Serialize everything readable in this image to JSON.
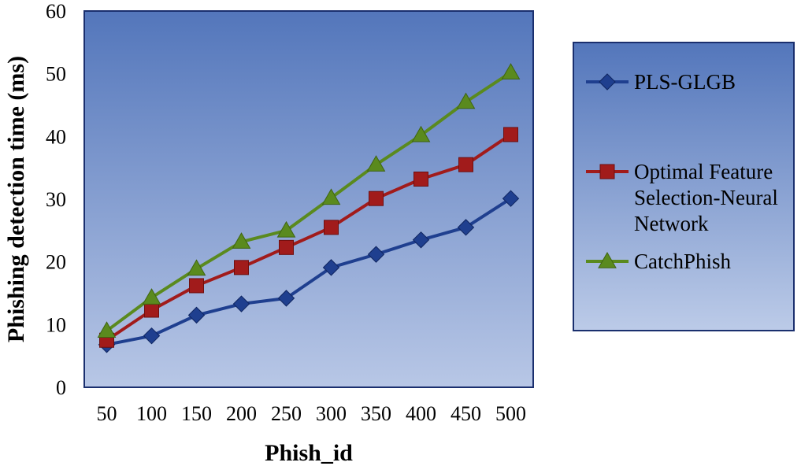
{
  "chart_data": {
    "type": "line",
    "title": "",
    "xlabel": "Phish_id",
    "ylabel": "Phishing detection time (ms)",
    "categories": [
      "50",
      "100",
      "150",
      "200",
      "250",
      "300",
      "350",
      "400",
      "450",
      "500"
    ],
    "ylim": [
      0,
      60
    ],
    "yticks": [
      "0",
      "10",
      "20",
      "30",
      "40",
      "50",
      "60"
    ],
    "grid": false,
    "legend_position": "right",
    "series": [
      {
        "name": "PLS-GLGB",
        "legend_lines": [
          "PLS-GLGB"
        ],
        "color": "#1f3f8f",
        "marker": "diamond",
        "values": [
          6.8,
          8.2,
          11.5,
          13.3,
          14.2,
          19.1,
          21.2,
          23.5,
          25.5,
          30.1
        ]
      },
      {
        "name": "Optimal Feature Selection-Neural Network",
        "legend_lines": [
          "Optimal Feature",
          "Selection-Neural",
          "Network"
        ],
        "color": "#a11b1b",
        "marker": "square",
        "values": [
          7.5,
          12.3,
          16.2,
          19.1,
          22.3,
          25.5,
          30.1,
          33.2,
          35.5,
          40.3
        ]
      },
      {
        "name": "CatchPhish",
        "legend_lines": [
          "CatchPhish"
        ],
        "color": "#5a8a1e",
        "marker": "triangle",
        "values": [
          9.0,
          14.3,
          18.9,
          23.2,
          25.0,
          30.2,
          35.5,
          40.2,
          45.5,
          50.2
        ]
      }
    ]
  }
}
